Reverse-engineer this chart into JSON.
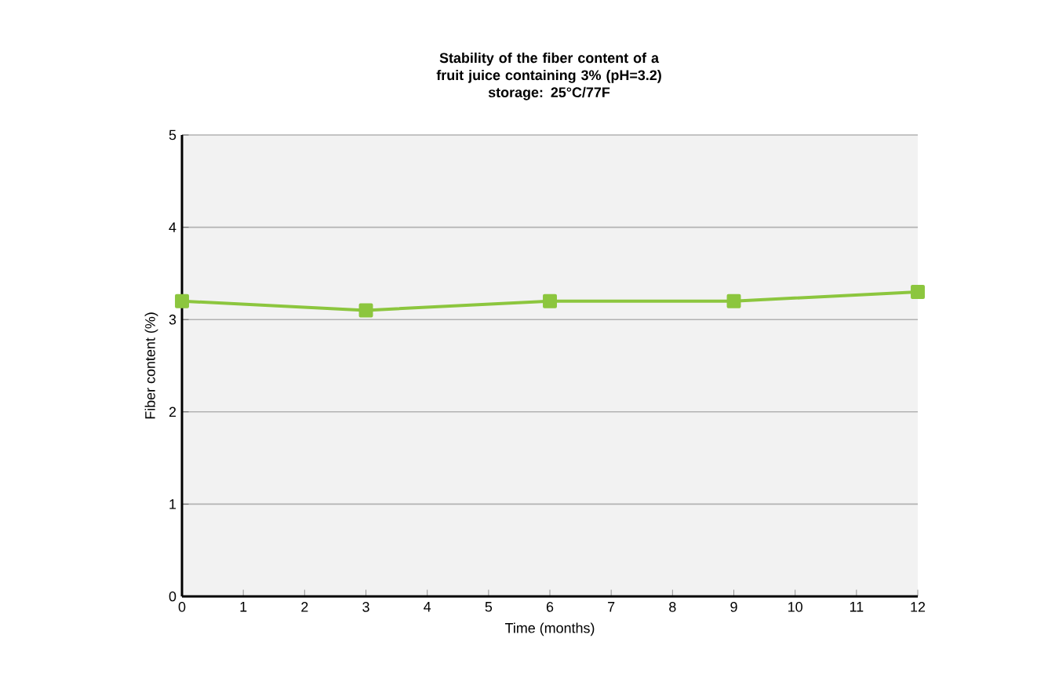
{
  "chart_data": {
    "type": "line",
    "title": "Stability of the fiber content of a fruit juice containing 3% (pH=3.2)",
    "subtitle": "storage: 25°C/77F",
    "xlabel": "Time (months)",
    "ylabel": "Fiber content (%)",
    "x": [
      0,
      3,
      6,
      9,
      12
    ],
    "series": [
      {
        "color": "#8cc63e",
        "values": [
          3.2,
          3.1,
          3.2,
          3.2,
          3.3
        ]
      }
    ],
    "xlim": [
      0,
      12
    ],
    "xticks": [
      0,
      1,
      2,
      3,
      4,
      5,
      6,
      7,
      8,
      9,
      10,
      11,
      12
    ],
    "ylim": [
      0,
      5
    ],
    "yticks": [
      0,
      1,
      2,
      3,
      4,
      5
    ],
    "grid": "y",
    "marker": "square",
    "line_style": "solid"
  }
}
